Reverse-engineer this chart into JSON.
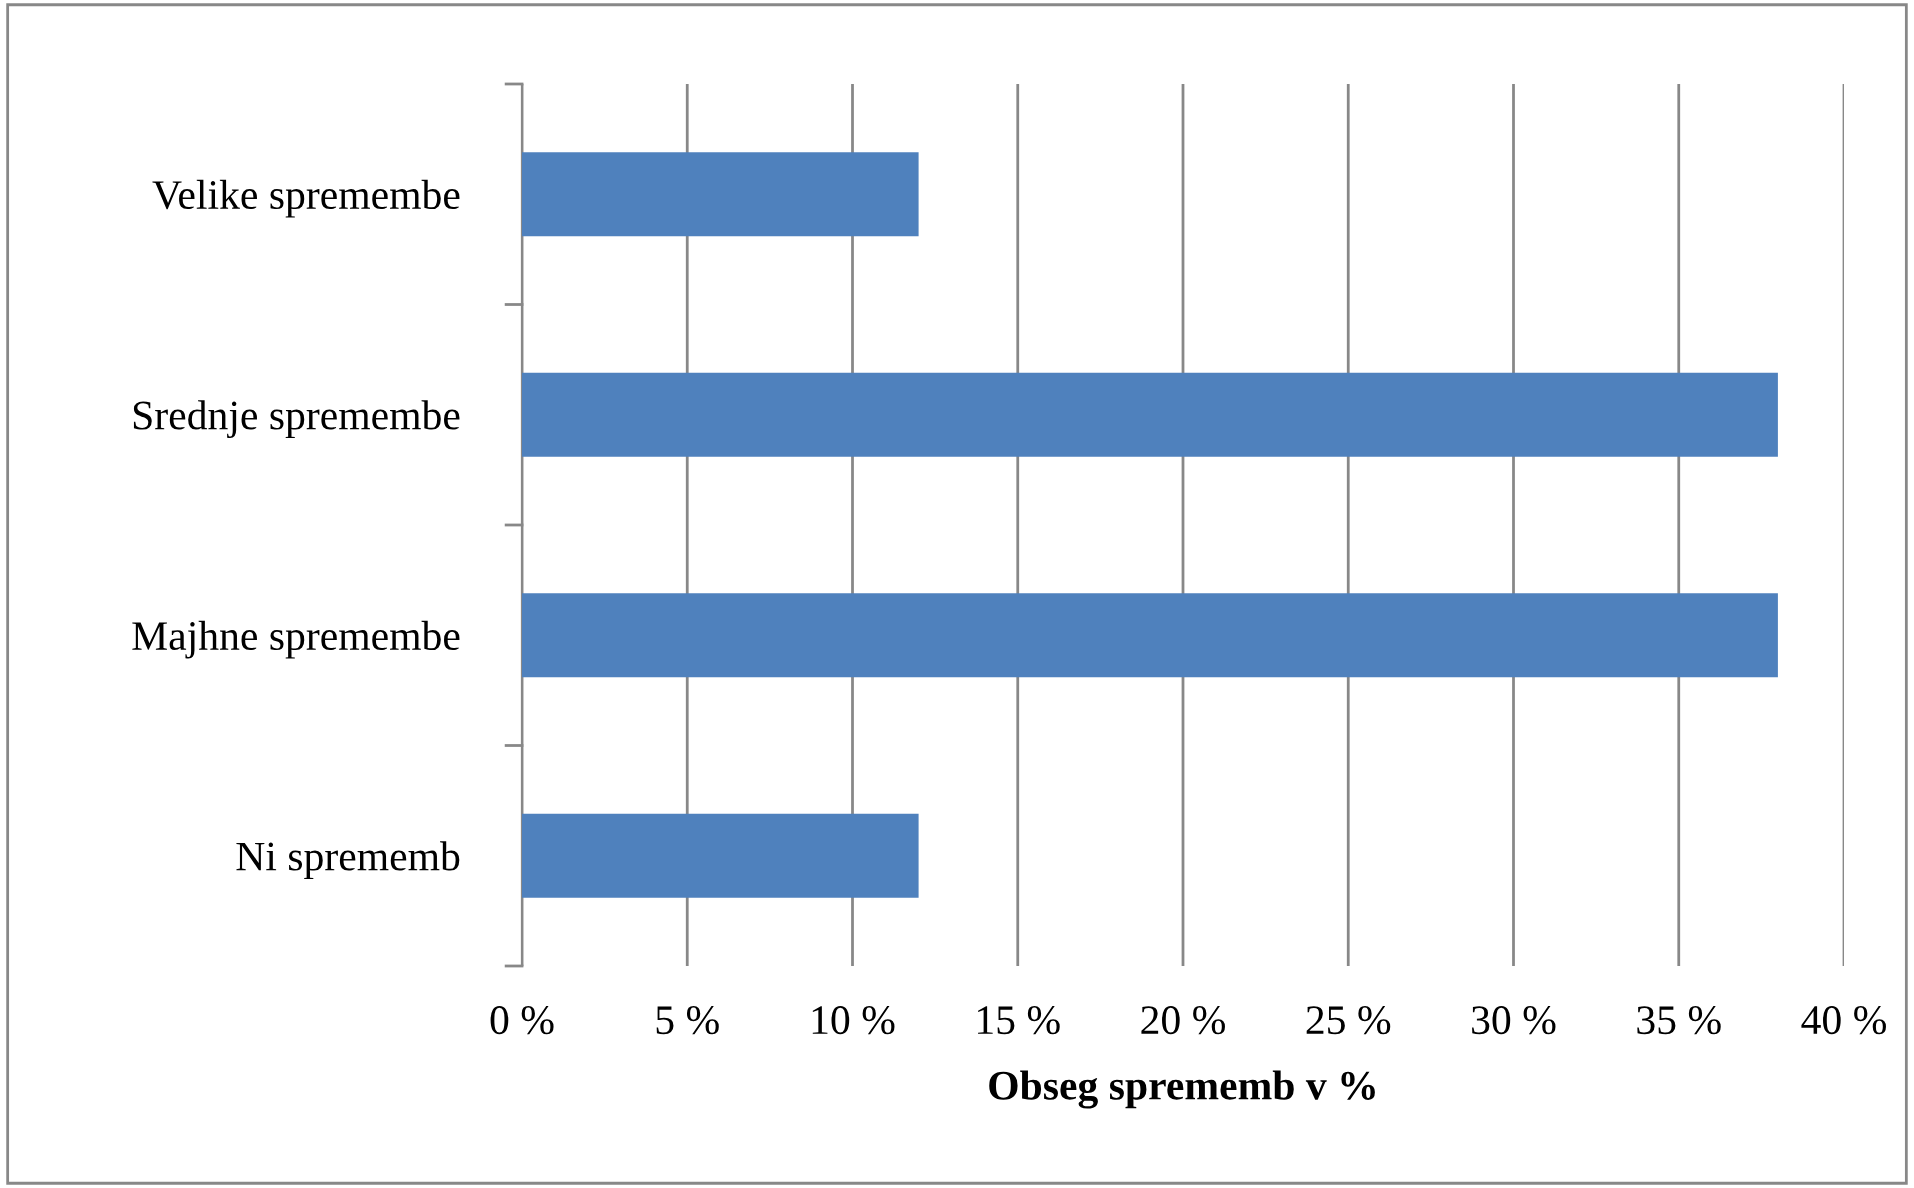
{
  "chart_data": {
    "type": "bar",
    "orientation": "horizontal",
    "xlabel": "Obseg sprememb v %",
    "categories": [
      "Velike spremembe",
      "Srednje spremembe",
      "Majhne spremembe",
      "Ni sprememb"
    ],
    "values": [
      12,
      38,
      38,
      12
    ],
    "color": "#4f81bd",
    "xlim": [
      0,
      40
    ],
    "xticks": [
      {
        "value": 0,
        "label": "0 %"
      },
      {
        "value": 5,
        "label": "5 %"
      },
      {
        "value": 10,
        "label": "10 %"
      },
      {
        "value": 15,
        "label": "15 %"
      },
      {
        "value": 20,
        "label": "20 %"
      },
      {
        "value": 25,
        "label": "25 %"
      },
      {
        "value": 30,
        "label": "30 %"
      },
      {
        "value": 35,
        "label": "35 %"
      },
      {
        "value": 40,
        "label": "40 %"
      }
    ],
    "grid": "x"
  }
}
